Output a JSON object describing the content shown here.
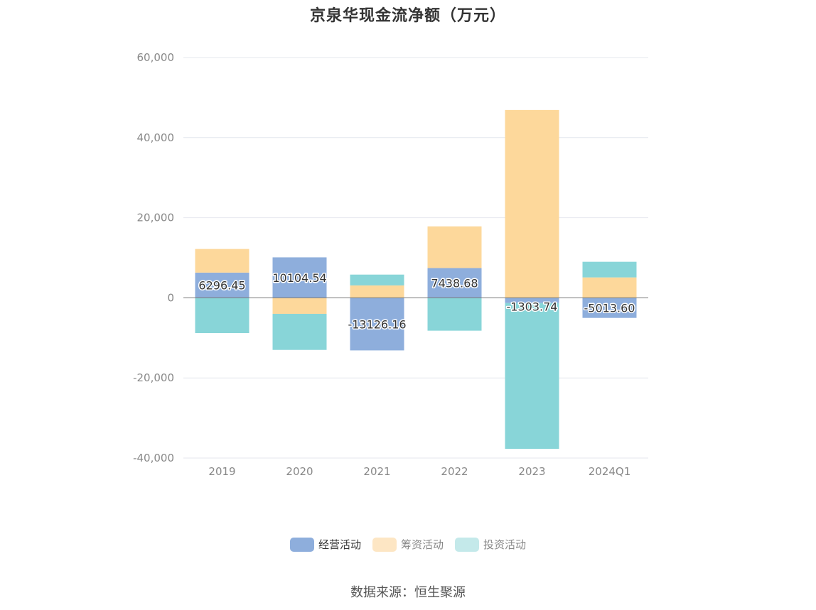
{
  "chart_data": {
    "type": "bar",
    "stacked": true,
    "title": "京泉华现金流净额（万元）",
    "categories": [
      "2019",
      "2020",
      "2021",
      "2022",
      "2023",
      "2024Q1"
    ],
    "series": [
      {
        "name": "经营活动",
        "color": "#8eaedc",
        "values": [
          6296.45,
          10104.54,
          -13126.16,
          7438.68,
          -1303.74,
          -5013.6
        ]
      },
      {
        "name": "筹资活动",
        "color": "#fdd89b",
        "values": [
          5900,
          -4000,
          3100,
          10400,
          46900,
          5100
        ]
      },
      {
        "name": "投资活动",
        "color": "#88d5d8",
        "values": [
          -8800,
          -9000,
          2700,
          -8200,
          -36400,
          3900
        ]
      }
    ],
    "data_labels": [
      "6296.45",
      "10104.54",
      "-13126.16",
      "7438.68",
      "-1303.74",
      "-5013.60"
    ],
    "ylim": [
      -40000,
      60000
    ],
    "yticks": [
      60000,
      40000,
      20000,
      0,
      -20000,
      -40000
    ],
    "ytick_labels": [
      "60,000",
      "40,000",
      "20,000",
      "0",
      "-20,000",
      "-40,000"
    ],
    "grid": true,
    "legend_position": "bottom"
  },
  "legend": {
    "items": [
      {
        "label": "经营活动",
        "color": "#8eaedc",
        "text_color": "#333333"
      },
      {
        "label": "筹资活动",
        "color": "#fde6c4",
        "text_color": "#888888"
      },
      {
        "label": "投资活动",
        "color": "#c4e9ea",
        "text_color": "#888888"
      }
    ]
  },
  "source": "数据来源：恒生聚源"
}
